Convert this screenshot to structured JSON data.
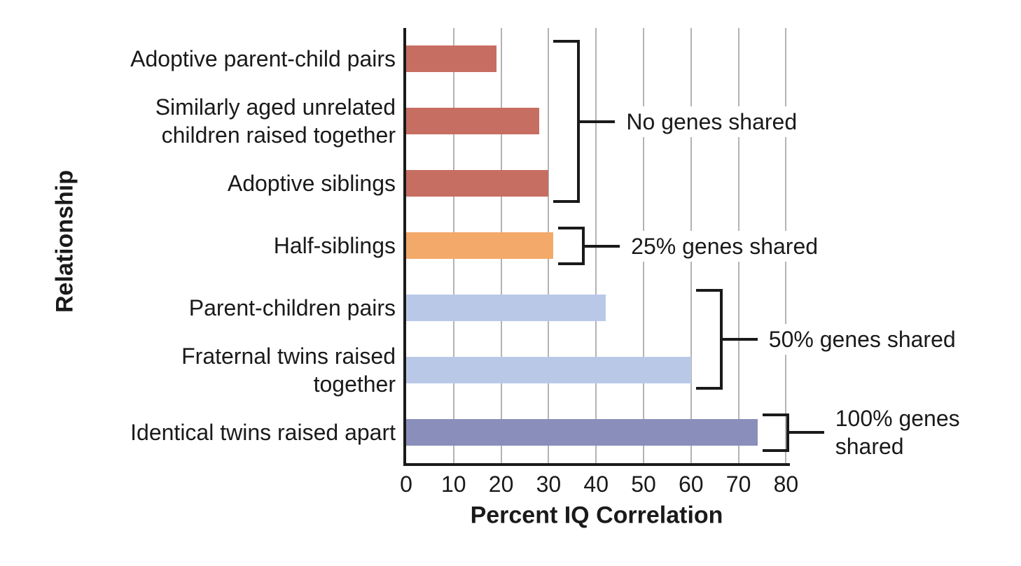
{
  "chart_data": {
    "type": "bar",
    "orientation": "horizontal",
    "title": "",
    "xlabel": "Percent IQ Correlation",
    "ylabel": "Relationship",
    "xlim": [
      0,
      80
    ],
    "x_ticks": [
      0,
      10,
      20,
      30,
      40,
      50,
      60,
      70,
      80
    ],
    "grid": true,
    "legend_position": "none",
    "categories": [
      "Adoptive parent-child pairs",
      "Similarly aged unrelated children raised together",
      "Adoptive siblings",
      "Half-siblings",
      "Parent-children pairs",
      "Fraternal twins raised together",
      "Identical twins raised apart"
    ],
    "values": [
      19,
      28,
      30,
      31,
      42,
      60,
      74
    ],
    "bar_colors": [
      "#c76e62",
      "#c76e62",
      "#c76e62",
      "#f2a96a",
      "#bac8e8",
      "#bac8e8",
      "#8a8eba"
    ],
    "annotations": [
      {
        "label": "No genes shared",
        "row_start": 0,
        "row_end": 2
      },
      {
        "label": "25% genes shared",
        "row_start": 3,
        "row_end": 3
      },
      {
        "label": "50% genes shared",
        "row_start": 4,
        "row_end": 5
      },
      {
        "label": "100% genes shared",
        "row_start": 6,
        "row_end": 6
      }
    ],
    "colors": {
      "group_no_genes": "#c76e62",
      "group_25_genes": "#f2a96a",
      "group_50_genes": "#bac8e8",
      "group_100_genes": "#8a8eba",
      "gridline": "#b3b3b3",
      "axis_and_text": "#1a1a1a",
      "background": "#ffffff"
    }
  }
}
